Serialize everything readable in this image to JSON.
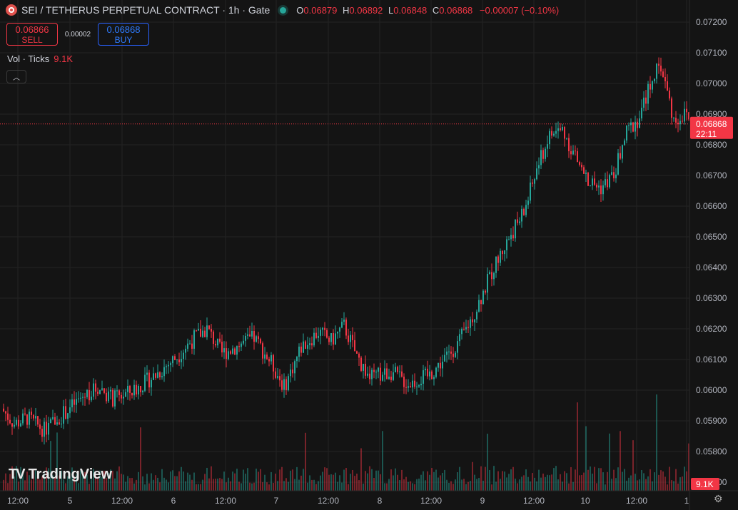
{
  "header": {
    "symbol_title": "SEI / TETHERUS PERPETUAL CONTRACT · 1h · Gate",
    "ohlc": {
      "o_label": "O",
      "o": "0.06879",
      "h_label": "H",
      "h": "0.06892",
      "l_label": "L",
      "l": "0.06848",
      "c_label": "C",
      "c": "0.06868",
      "change": "−0.00007 (−0.10%)"
    }
  },
  "trade": {
    "sell_price": "0.06866",
    "sell_label": "SELL",
    "spread": "0.00002",
    "buy_price": "0.06868",
    "buy_label": "BUY"
  },
  "volume_legend": {
    "label": "Vol · Ticks",
    "value": "9.1K"
  },
  "price_axis": {
    "labels": [
      "0.07200",
      "0.07100",
      "0.07000",
      "0.06900",
      "0.06800",
      "0.06700",
      "0.06600",
      "0.06500",
      "0.06400",
      "0.06300",
      "0.06200",
      "0.06100",
      "0.06000",
      "0.05900",
      "0.05800",
      "0.05700"
    ],
    "current_price": "0.06868",
    "countdown": "22:11",
    "volume_badge": "9.1K"
  },
  "time_axis": {
    "labels": [
      "12:00",
      "5",
      "12:00",
      "6",
      "12:00",
      "7",
      "12:00",
      "8",
      "12:00",
      "9",
      "12:00",
      "10",
      "12:00",
      "1"
    ]
  },
  "brand": "TradingView",
  "colors": {
    "up": "#26a69a",
    "down": "#f23645",
    "background": "#141414",
    "grid": "#232323"
  },
  "chart_data": {
    "type": "candlestick",
    "interval": "1h",
    "ylim": [
      0.057,
      0.0723
    ],
    "current_price": 0.06868,
    "candles": [],
    "volume": []
  }
}
